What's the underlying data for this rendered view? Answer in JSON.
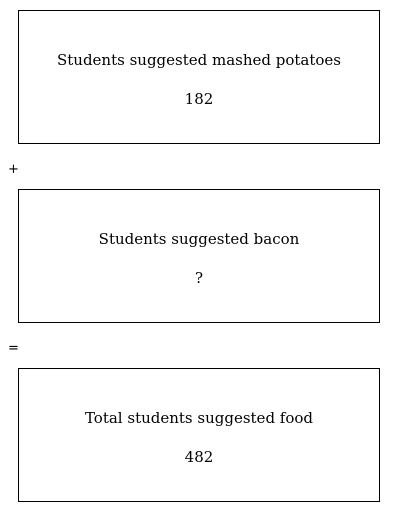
{
  "boxes": [
    {
      "label": "Students suggested mashed potatoes",
      "value": "182"
    },
    {
      "label": "Students suggested bacon",
      "value": "?"
    },
    {
      "label": "Total students suggested food",
      "value": "482"
    }
  ],
  "operators": {
    "plus": "+",
    "equals": "="
  }
}
